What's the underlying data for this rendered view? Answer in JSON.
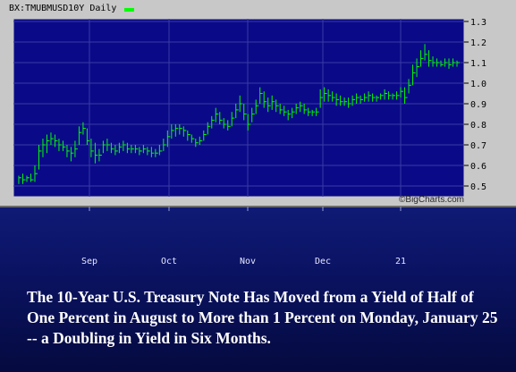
{
  "header": {
    "ticker": "BX:TMUBMUSD10Y",
    "period": "Daily",
    "legend_color": "#00ff00"
  },
  "watermark": "©BigCharts.com",
  "caption": "The 10-Year U.S. Treasury Note Has Moved from a Yield of Half of One Percent in August to More than 1 Percent on Monday, January 25 -- a Doubling in Yield in Six Months.",
  "colors": {
    "plot_bg": "#0a0a88",
    "bar": "#00ff00",
    "grid": "#3a3aa8",
    "frame": "#c8c8c8"
  },
  "chart_data": {
    "type": "ohlc-bar",
    "title": "BX:TMUBMUSD10Y Daily",
    "x_tick_labels": [
      "Sep",
      "Oct",
      "Nov",
      "Dec",
      "21"
    ],
    "y_tick_labels": [
      "1.3",
      "1.2",
      "1.1",
      "1.0",
      "0.9",
      "0.8",
      "0.7",
      "0.6",
      "0.5"
    ],
    "ylim": [
      0.5,
      1.3
    ],
    "grid": true,
    "series": [
      {
        "values": [
          [
            0.55,
            0.51,
            0.54
          ],
          [
            0.56,
            0.51,
            0.53
          ],
          [
            0.55,
            0.52,
            0.54
          ],
          [
            0.56,
            0.52,
            0.53
          ],
          [
            0.6,
            0.52,
            0.56
          ],
          [
            0.7,
            0.58,
            0.67
          ],
          [
            0.73,
            0.64,
            0.7
          ],
          [
            0.75,
            0.66,
            0.72
          ],
          [
            0.76,
            0.7,
            0.73
          ],
          [
            0.75,
            0.69,
            0.72
          ],
          [
            0.73,
            0.67,
            0.7
          ],
          [
            0.72,
            0.67,
            0.69
          ],
          [
            0.7,
            0.64,
            0.67
          ],
          [
            0.69,
            0.62,
            0.66
          ],
          [
            0.72,
            0.64,
            0.68
          ],
          [
            0.79,
            0.7,
            0.76
          ],
          [
            0.81,
            0.75,
            0.78
          ],
          [
            0.78,
            0.7,
            0.72
          ],
          [
            0.73,
            0.64,
            0.67
          ],
          [
            0.71,
            0.61,
            0.65
          ],
          [
            0.68,
            0.62,
            0.65
          ],
          [
            0.72,
            0.66,
            0.7
          ],
          [
            0.73,
            0.67,
            0.7
          ],
          [
            0.71,
            0.66,
            0.68
          ],
          [
            0.7,
            0.65,
            0.67
          ],
          [
            0.71,
            0.66,
            0.69
          ],
          [
            0.72,
            0.67,
            0.7
          ],
          [
            0.71,
            0.66,
            0.68
          ],
          [
            0.7,
            0.66,
            0.68
          ],
          [
            0.7,
            0.66,
            0.68
          ],
          [
            0.69,
            0.65,
            0.67
          ],
          [
            0.7,
            0.66,
            0.68
          ],
          [
            0.69,
            0.65,
            0.67
          ],
          [
            0.69,
            0.64,
            0.66
          ],
          [
            0.68,
            0.64,
            0.66
          ],
          [
            0.7,
            0.65,
            0.67
          ],
          [
            0.73,
            0.67,
            0.7
          ],
          [
            0.77,
            0.69,
            0.74
          ],
          [
            0.8,
            0.73,
            0.77
          ],
          [
            0.8,
            0.74,
            0.78
          ],
          [
            0.8,
            0.75,
            0.78
          ],
          [
            0.79,
            0.74,
            0.77
          ],
          [
            0.77,
            0.72,
            0.75
          ],
          [
            0.75,
            0.71,
            0.73
          ],
          [
            0.73,
            0.69,
            0.71
          ],
          [
            0.74,
            0.7,
            0.72
          ],
          [
            0.77,
            0.72,
            0.75
          ],
          [
            0.81,
            0.75,
            0.79
          ],
          [
            0.84,
            0.78,
            0.82
          ],
          [
            0.88,
            0.81,
            0.85
          ],
          [
            0.86,
            0.8,
            0.82
          ],
          [
            0.83,
            0.78,
            0.8
          ],
          [
            0.82,
            0.77,
            0.79
          ],
          [
            0.86,
            0.79,
            0.83
          ],
          [
            0.9,
            0.83,
            0.87
          ],
          [
            0.94,
            0.86,
            0.9
          ],
          [
            0.9,
            0.82,
            0.85
          ],
          [
            0.85,
            0.77,
            0.8
          ],
          [
            0.88,
            0.81,
            0.85
          ],
          [
            0.92,
            0.85,
            0.89
          ],
          [
            0.98,
            0.9,
            0.95
          ],
          [
            0.96,
            0.88,
            0.91
          ],
          [
            0.93,
            0.86,
            0.89
          ],
          [
            0.94,
            0.87,
            0.91
          ],
          [
            0.92,
            0.86,
            0.89
          ],
          [
            0.9,
            0.85,
            0.87
          ],
          [
            0.89,
            0.84,
            0.86
          ],
          [
            0.87,
            0.82,
            0.85
          ],
          [
            0.88,
            0.83,
            0.86
          ],
          [
            0.9,
            0.85,
            0.88
          ],
          [
            0.91,
            0.86,
            0.89
          ],
          [
            0.9,
            0.85,
            0.87
          ],
          [
            0.88,
            0.84,
            0.86
          ],
          [
            0.87,
            0.84,
            0.86
          ],
          [
            0.88,
            0.84,
            0.86
          ],
          [
            0.97,
            0.88,
            0.93
          ],
          [
            0.98,
            0.91,
            0.95
          ],
          [
            0.97,
            0.91,
            0.94
          ],
          [
            0.96,
            0.91,
            0.93
          ],
          [
            0.95,
            0.89,
            0.92
          ],
          [
            0.94,
            0.89,
            0.91
          ],
          [
            0.93,
            0.89,
            0.91
          ],
          [
            0.93,
            0.88,
            0.9
          ],
          [
            0.94,
            0.89,
            0.92
          ],
          [
            0.95,
            0.9,
            0.93
          ],
          [
            0.94,
            0.9,
            0.92
          ],
          [
            0.95,
            0.91,
            0.93
          ],
          [
            0.96,
            0.91,
            0.94
          ],
          [
            0.95,
            0.91,
            0.93
          ],
          [
            0.94,
            0.91,
            0.93
          ],
          [
            0.95,
            0.92,
            0.94
          ],
          [
            0.97,
            0.92,
            0.95
          ],
          [
            0.96,
            0.92,
            0.94
          ],
          [
            0.95,
            0.92,
            0.94
          ],
          [
            0.96,
            0.92,
            0.94
          ],
          [
            0.98,
            0.93,
            0.96
          ],
          [
            0.98,
            0.9,
            0.93
          ],
          [
            1.02,
            0.95,
            0.99
          ],
          [
            1.09,
            0.99,
            1.05
          ],
          [
            1.12,
            1.03,
            1.08
          ],
          [
            1.16,
            1.08,
            1.12
          ],
          [
            1.19,
            1.11,
            1.14
          ],
          [
            1.16,
            1.08,
            1.11
          ],
          [
            1.13,
            1.08,
            1.1
          ],
          [
            1.12,
            1.08,
            1.1
          ],
          [
            1.11,
            1.08,
            1.09
          ],
          [
            1.12,
            1.08,
            1.1
          ],
          [
            1.12,
            1.07,
            1.09
          ],
          [
            1.12,
            1.08,
            1.1
          ],
          [
            1.11,
            1.08,
            1.1
          ]
        ]
      }
    ]
  }
}
